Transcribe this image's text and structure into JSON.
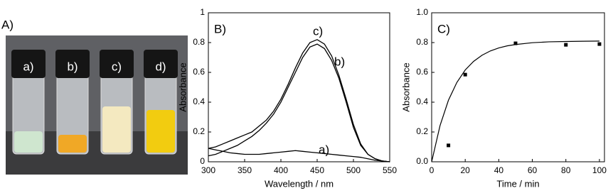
{
  "photo": {
    "panel_label": "A)",
    "vial_labels": [
      "a)",
      "b)",
      "c)",
      "d)"
    ]
  },
  "chart_data": [
    {
      "type": "line",
      "panel_label": "B)",
      "x_label": "Wavelength / nm",
      "y_label": "Absorbance",
      "xlim": [
        300,
        550
      ],
      "xticks": [
        300,
        350,
        400,
        450,
        500,
        550
      ],
      "ylim": [
        0,
        1
      ],
      "yticks": [
        0,
        0.2,
        0.4,
        0.6,
        0.8,
        1
      ],
      "x": [
        300,
        310,
        320,
        330,
        340,
        350,
        360,
        370,
        380,
        390,
        400,
        410,
        420,
        430,
        440,
        450,
        460,
        470,
        480,
        490,
        500,
        510,
        520,
        530,
        540,
        550
      ],
      "series": [
        {
          "name": "a)",
          "color": "#000000",
          "values": [
            0.09,
            0.08,
            0.07,
            0.06,
            0.055,
            0.05,
            0.05,
            0.05,
            0.055,
            0.06,
            0.065,
            0.07,
            0.075,
            0.07,
            0.065,
            0.06,
            0.055,
            0.05,
            0.045,
            0.04,
            0.035,
            0.03,
            0.02,
            0.01,
            0.005,
            0
          ]
        },
        {
          "name": "b)",
          "color": "#000000",
          "values": [
            0.04,
            0.05,
            0.07,
            0.09,
            0.11,
            0.14,
            0.17,
            0.21,
            0.26,
            0.32,
            0.4,
            0.5,
            0.6,
            0.7,
            0.77,
            0.79,
            0.76,
            0.68,
            0.56,
            0.4,
            0.23,
            0.11,
            0.05,
            0.02,
            0.005,
            0
          ]
        },
        {
          "name": "c)",
          "color": "#000000",
          "values": [
            0.09,
            0.1,
            0.12,
            0.14,
            0.16,
            0.18,
            0.2,
            0.24,
            0.28,
            0.34,
            0.42,
            0.52,
            0.63,
            0.73,
            0.8,
            0.82,
            0.79,
            0.71,
            0.58,
            0.42,
            0.25,
            0.12,
            0.05,
            0.02,
            0.005,
            0
          ]
        }
      ]
    },
    {
      "type": "scatter",
      "panel_label": "C)",
      "x_label": "Time / min",
      "y_label": "Absorbance",
      "xlim": [
        0,
        103
      ],
      "xticks": [
        0,
        20,
        40,
        60,
        80,
        100
      ],
      "ylim": [
        0,
        1
      ],
      "yticks": [
        {
          "value": 0,
          "label": "0.0"
        },
        {
          "value": 0.2,
          "label": "0.2"
        },
        {
          "value": 0.4,
          "label": "0.4"
        },
        {
          "value": 0.6,
          "label": "0.6"
        },
        {
          "value": 0.8,
          "label": "0.8"
        },
        {
          "value": 1,
          "label": "1.0"
        }
      ],
      "color": "#000000",
      "points": {
        "x": [
          10,
          20,
          50,
          80,
          100
        ],
        "y": [
          0.11,
          0.585,
          0.795,
          0.785,
          0.79
        ]
      },
      "fit": {
        "x": [
          0,
          5,
          10,
          15,
          20,
          25,
          30,
          35,
          40,
          45,
          50,
          60,
          70,
          80,
          90,
          100
        ],
        "y": [
          0,
          0.243,
          0.413,
          0.532,
          0.616,
          0.674,
          0.715,
          0.744,
          0.764,
          0.778,
          0.787,
          0.799,
          0.805,
          0.807,
          0.809,
          0.81
        ]
      }
    }
  ]
}
